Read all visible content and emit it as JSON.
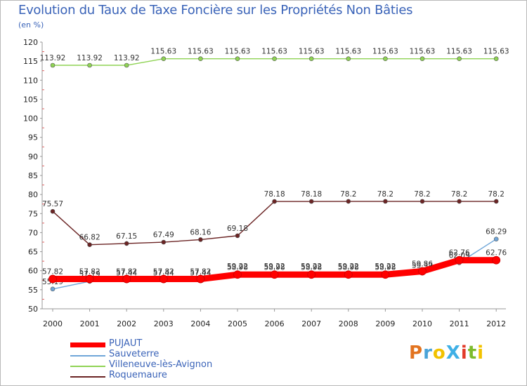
{
  "title": "Evolution du Taux de Taxe Foncière sur les Propriétés Non Bâties",
  "unit_label": "(en %)",
  "logo": {
    "text": "ProXiti",
    "colors": [
      "#e2731f",
      "#4aa3d8",
      "#f2c200",
      "#3fb0e6",
      "#e23b2a",
      "#7dbb2c",
      "#f2c200"
    ]
  },
  "chart_data": {
    "type": "line",
    "title": "Evolution du Taux de Taxe Foncière sur les Propriétés Non Bâties",
    "ylabel": "(en %)",
    "x": [
      "2000",
      "2001",
      "2002",
      "2003",
      "2004",
      "2005",
      "2006",
      "2007",
      "2008",
      "2009",
      "2010",
      "2011",
      "2012"
    ],
    "ylim": [
      50,
      120
    ],
    "yticks": [
      50,
      55,
      60,
      65,
      70,
      75,
      80,
      85,
      90,
      95,
      100,
      105,
      110,
      115,
      120
    ],
    "grid": false,
    "legend_position": "bottom-left",
    "series": [
      {
        "name": "Villeneuve-lès-Avignon",
        "color": "#8fd354",
        "values": [
          113.92,
          113.92,
          113.92,
          115.63,
          115.63,
          115.63,
          115.63,
          115.63,
          115.63,
          115.63,
          115.63,
          115.63,
          115.63
        ],
        "labels": [
          "113.92",
          "113.92",
          "113.92",
          "115.63",
          "115.63",
          "115.63",
          "115.63",
          "115.63",
          "115.63",
          "115.63",
          "115.63",
          "115.63",
          "115.63"
        ]
      },
      {
        "name": "Roquemaure",
        "color": "#6b2424",
        "values": [
          75.57,
          66.82,
          67.15,
          67.49,
          68.16,
          69.18,
          78.18,
          78.18,
          78.2,
          78.2,
          78.2,
          78.2,
          78.2
        ],
        "labels": [
          "75.57",
          "66.82",
          "67.15",
          "67.49",
          "68.16",
          "69.18",
          "78.18",
          "78.18",
          "78.2",
          "78.2",
          "78.2",
          "78.2",
          "78.2"
        ]
      },
      {
        "name": "Sauveterre",
        "color": "#6fa6d8",
        "values": [
          55.19,
          57.19,
          57.44,
          57.44,
          57.44,
          59.22,
          59.22,
          59.22,
          59.22,
          59.22,
          59.37,
          62.09,
          68.29
        ],
        "labels": [
          "55.19",
          "57.19",
          "57.44",
          "57.44",
          "57.44",
          "59.22",
          "59.22",
          "59.22",
          "59.22",
          "59.22",
          "59.37",
          "62.09",
          "68.29"
        ]
      },
      {
        "name": "PUJAUT",
        "color": "#ff0000",
        "values": [
          57.82,
          57.82,
          57.82,
          57.82,
          57.82,
          58.98,
          58.98,
          58.98,
          58.98,
          58.98,
          59.86,
          62.76,
          62.76
        ],
        "labels": [
          "57.82",
          "57.82",
          "57.82",
          "57.82",
          "57.82",
          "58.98",
          "58.98",
          "58.98",
          "58.98",
          "58.98",
          "59.86",
          "62.76",
          "62.76"
        ]
      }
    ]
  },
  "legend": [
    {
      "label": "PUJAUT",
      "color": "#ff0000"
    },
    {
      "label": "Sauveterre",
      "color": "#6fa6d8"
    },
    {
      "label": "Villeneuve-lès-Avignon",
      "color": "#8fd354"
    },
    {
      "label": "Roquemaure",
      "color": "#6b2424"
    }
  ]
}
